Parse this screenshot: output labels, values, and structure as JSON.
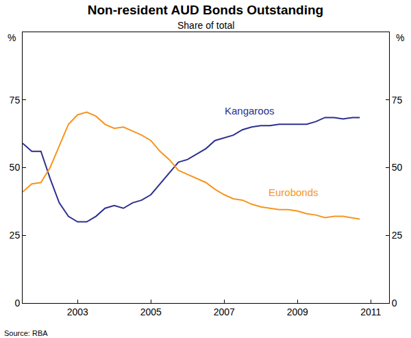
{
  "chart_data": {
    "type": "line",
    "title": "Non-resident AUD Bonds Outstanding",
    "subtitle": "Share of total",
    "ylabel": "%",
    "y2label": "%",
    "source": "Source: RBA",
    "x": [
      2001.5,
      2001.75,
      2002,
      2002.25,
      2002.5,
      2002.75,
      2003,
      2003.25,
      2003.5,
      2003.75,
      2004,
      2004.25,
      2004.5,
      2004.75,
      2005,
      2005.25,
      2005.5,
      2005.75,
      2006,
      2006.25,
      2006.5,
      2006.75,
      2007,
      2007.25,
      2007.5,
      2007.75,
      2008,
      2008.25,
      2008.5,
      2008.75,
      2009,
      2009.25,
      2009.5,
      2009.75,
      2010,
      2010.25,
      2010.5,
      2010.7
    ],
    "series": [
      {
        "name": "Kangaroos",
        "color": "#2b2f8f",
        "values": [
          59,
          56,
          56,
          46,
          37,
          32,
          30,
          30,
          32,
          35,
          36,
          35,
          37,
          38,
          40,
          44,
          48,
          52,
          53,
          55,
          57,
          60,
          61,
          62,
          64,
          65,
          65.5,
          65.5,
          66,
          66,
          66,
          66,
          67,
          68.5,
          68.5,
          68,
          68.5,
          68.5
        ]
      },
      {
        "name": "Eurobonds",
        "color": "#f7941d",
        "values": [
          41,
          44,
          44.5,
          50,
          58,
          66,
          69.5,
          70.5,
          69,
          66,
          64.5,
          65,
          63.5,
          62,
          60,
          56,
          53,
          49,
          47.5,
          46,
          44.5,
          42,
          40,
          38.5,
          38,
          36.5,
          35.5,
          35,
          34.5,
          34.5,
          34,
          33,
          32.5,
          31.5,
          32,
          32,
          31.5,
          31
        ]
      }
    ],
    "annotations": [
      {
        "text": "Kangaroos",
        "x": 2007.7,
        "y": 71
      },
      {
        "text": "Eurobonds",
        "x": 2008.9,
        "y": 41
      }
    ],
    "xlim": [
      2001.5,
      2011.5
    ],
    "xticks": [
      2003,
      2005,
      2007,
      2009,
      2011
    ],
    "ylim": [
      0,
      100
    ],
    "yticks": [
      0,
      25,
      50,
      75
    ],
    "y2lim": [
      0,
      100
    ],
    "y2ticks": [
      0,
      25,
      50,
      75
    ],
    "grid": false
  }
}
